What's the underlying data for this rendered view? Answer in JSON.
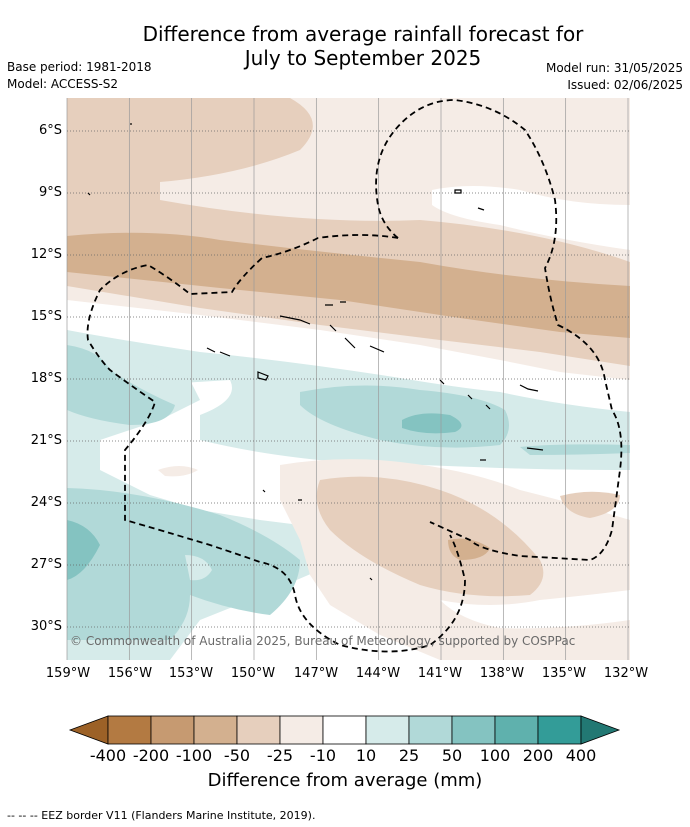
{
  "title": {
    "line1": "Difference from average rainfall forecast for",
    "line2": "July to September 2025"
  },
  "meta": {
    "base_period": "Base period: 1981-2018",
    "model": "Model: ACCESS-S2",
    "model_run": "Model run: 31/05/2025",
    "issued": "Issued: 02/06/2025"
  },
  "map": {
    "lat_labels": [
      "6°S",
      "9°S",
      "12°S",
      "15°S",
      "18°S",
      "21°S",
      "24°S",
      "27°S",
      "30°S"
    ],
    "lon_labels": [
      "159°W",
      "156°W",
      "153°W",
      "150°W",
      "147°W",
      "144°W",
      "141°W",
      "138°W",
      "135°W",
      "132°W"
    ],
    "copyright": "© Commonwealth of Australia 2025, Bureau of Meteorology, supported by COSPPac",
    "colors": {
      "brown_50": "#d3b08f",
      "brown_25": "#e6cfbd",
      "brown_10": "#f5ece6",
      "neutral": "#ffffff",
      "teal_10": "#d6ebea",
      "teal_25": "#b1d9d8",
      "teal_50": "#84c3c1"
    }
  },
  "colorbar": {
    "labels": [
      "-400",
      "-200",
      "-100",
      "-50",
      "-25",
      "-10",
      "10",
      "25",
      "50",
      "100",
      "200",
      "400"
    ],
    "colors": [
      "#9c6127",
      "#b37a42",
      "#c69a71",
      "#d3b08f",
      "#e6cfbd",
      "#f5ece6",
      "#ffffff",
      "#d6ebea",
      "#b1d9d8",
      "#84c3c1",
      "#5fb1ad",
      "#339c98",
      "#227873"
    ],
    "title": "Difference from average (mm)"
  },
  "footnote": "--  --  -- EEZ border V11 (Flanders Marine Institute, 2019)."
}
